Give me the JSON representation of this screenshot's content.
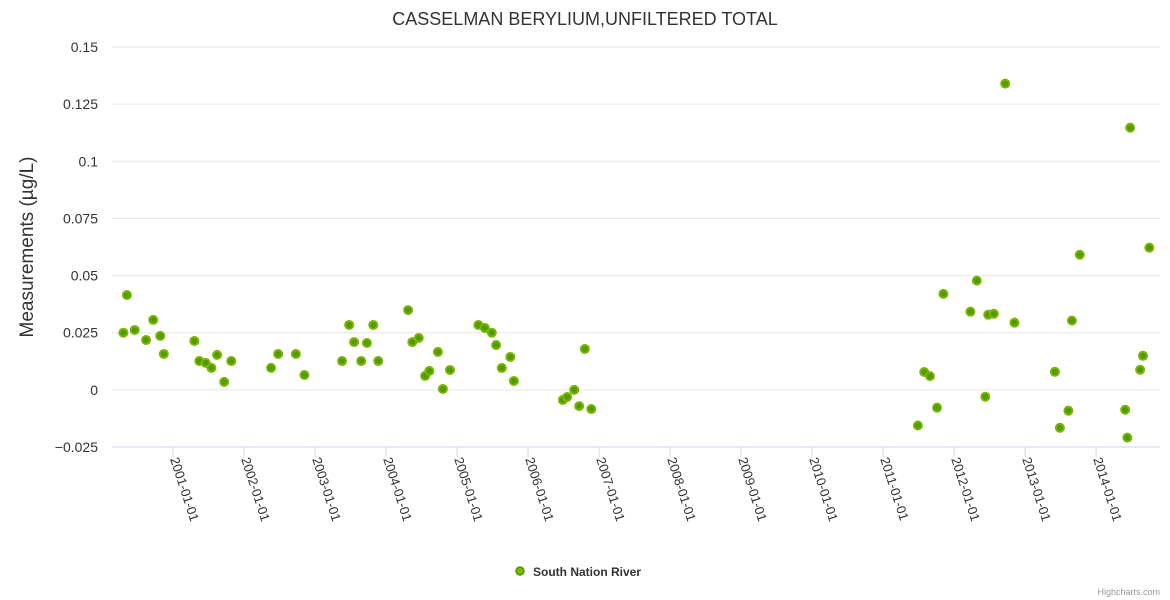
{
  "chart_data": {
    "type": "scatter",
    "title": "CASSELMAN BERYLIUM,UNFILTERED TOTAL",
    "xlabel": "",
    "ylabel": "Measurements (µg/L)",
    "ylim": [
      -0.025,
      0.15
    ],
    "yticks": [
      -0.025,
      0,
      0.025,
      0.05,
      0.075,
      0.1,
      0.125,
      0.15
    ],
    "ytick_labels": [
      "−0.025",
      "0",
      "0.025",
      "0.05",
      "0.075",
      "0.1",
      "0.125",
      "0.15"
    ],
    "xlim": [
      2000.14,
      2014.9
    ],
    "xticks": [
      2001,
      2002,
      2003,
      2004,
      2005,
      2006,
      2007,
      2008,
      2009,
      2010,
      2011,
      2012,
      2013,
      2014
    ],
    "xtick_labels": [
      "2001-01-01",
      "2002-01-01",
      "2003-01-01",
      "2004-01-01",
      "2005-01-01",
      "2006-01-01",
      "2007-01-01",
      "2008-01-01",
      "2009-01-01",
      "2010-01-01",
      "2011-01-01",
      "2012-01-01",
      "2013-01-01",
      "2014-01-01"
    ],
    "grid": true,
    "legend_position": "bottom-center",
    "series": [
      {
        "name": "South Nation River",
        "color": "#7cb500",
        "points": [
          [
            2000.3,
            0.025
          ],
          [
            2000.35,
            0.0415
          ],
          [
            2000.46,
            0.0262
          ],
          [
            2000.62,
            0.0218
          ],
          [
            2000.72,
            0.0306
          ],
          [
            2000.82,
            0.0236
          ],
          [
            2000.87,
            0.0157
          ],
          [
            2001.3,
            0.0214
          ],
          [
            2001.37,
            0.0126
          ],
          [
            2001.46,
            0.0118
          ],
          [
            2001.54,
            0.0096
          ],
          [
            2001.62,
            0.0153
          ],
          [
            2001.72,
            0.0035
          ],
          [
            2001.82,
            0.0126
          ],
          [
            2002.38,
            0.0096
          ],
          [
            2002.48,
            0.0157
          ],
          [
            2002.73,
            0.0157
          ],
          [
            2002.85,
            0.0065
          ],
          [
            2003.38,
            0.0126
          ],
          [
            2003.48,
            0.0284
          ],
          [
            2003.55,
            0.0209
          ],
          [
            2003.65,
            0.0126
          ],
          [
            2003.73,
            0.0205
          ],
          [
            2003.82,
            0.0284
          ],
          [
            2003.89,
            0.0126
          ],
          [
            2004.31,
            0.0349
          ],
          [
            2004.37,
            0.0209
          ],
          [
            2004.46,
            0.0227
          ],
          [
            2004.55,
            0.0061
          ],
          [
            2004.61,
            0.0083
          ],
          [
            2004.73,
            0.0166
          ],
          [
            2004.8,
            0.0004
          ],
          [
            2004.9,
            0.0087
          ],
          [
            2005.3,
            0.0284
          ],
          [
            2005.39,
            0.0271
          ],
          [
            2005.49,
            0.025
          ],
          [
            2005.55,
            0.0196
          ],
          [
            2005.63,
            0.0096
          ],
          [
            2005.75,
            0.0144
          ],
          [
            2005.8,
            0.0039
          ],
          [
            2006.49,
            -0.0044
          ],
          [
            2006.55,
            -0.0031
          ],
          [
            2006.65,
            0.0
          ],
          [
            2006.72,
            -0.0071
          ],
          [
            2006.8,
            0.0179
          ],
          [
            2006.89,
            -0.0084
          ],
          [
            2011.49,
            -0.0156
          ],
          [
            2011.58,
            0.0078
          ],
          [
            2011.66,
            0.006
          ],
          [
            2011.76,
            -0.0078
          ],
          [
            2011.85,
            0.042
          ],
          [
            2012.23,
            0.0342
          ],
          [
            2012.32,
            0.0478
          ],
          [
            2012.44,
            -0.003
          ],
          [
            2012.48,
            0.0329
          ],
          [
            2012.56,
            0.0333
          ],
          [
            2012.72,
            0.134
          ],
          [
            2012.85,
            0.0294
          ],
          [
            2013.42,
            0.0079
          ],
          [
            2013.49,
            -0.0166
          ],
          [
            2013.61,
            -0.0091
          ],
          [
            2013.66,
            0.0303
          ],
          [
            2013.77,
            0.0591
          ],
          [
            2014.41,
            -0.0087
          ],
          [
            2014.44,
            -0.0209
          ],
          [
            2014.48,
            0.1147
          ],
          [
            2014.62,
            0.0088
          ],
          [
            2014.66,
            0.0149
          ],
          [
            2014.75,
            0.0622
          ]
        ]
      }
    ]
  },
  "credits": "Highcharts.com"
}
